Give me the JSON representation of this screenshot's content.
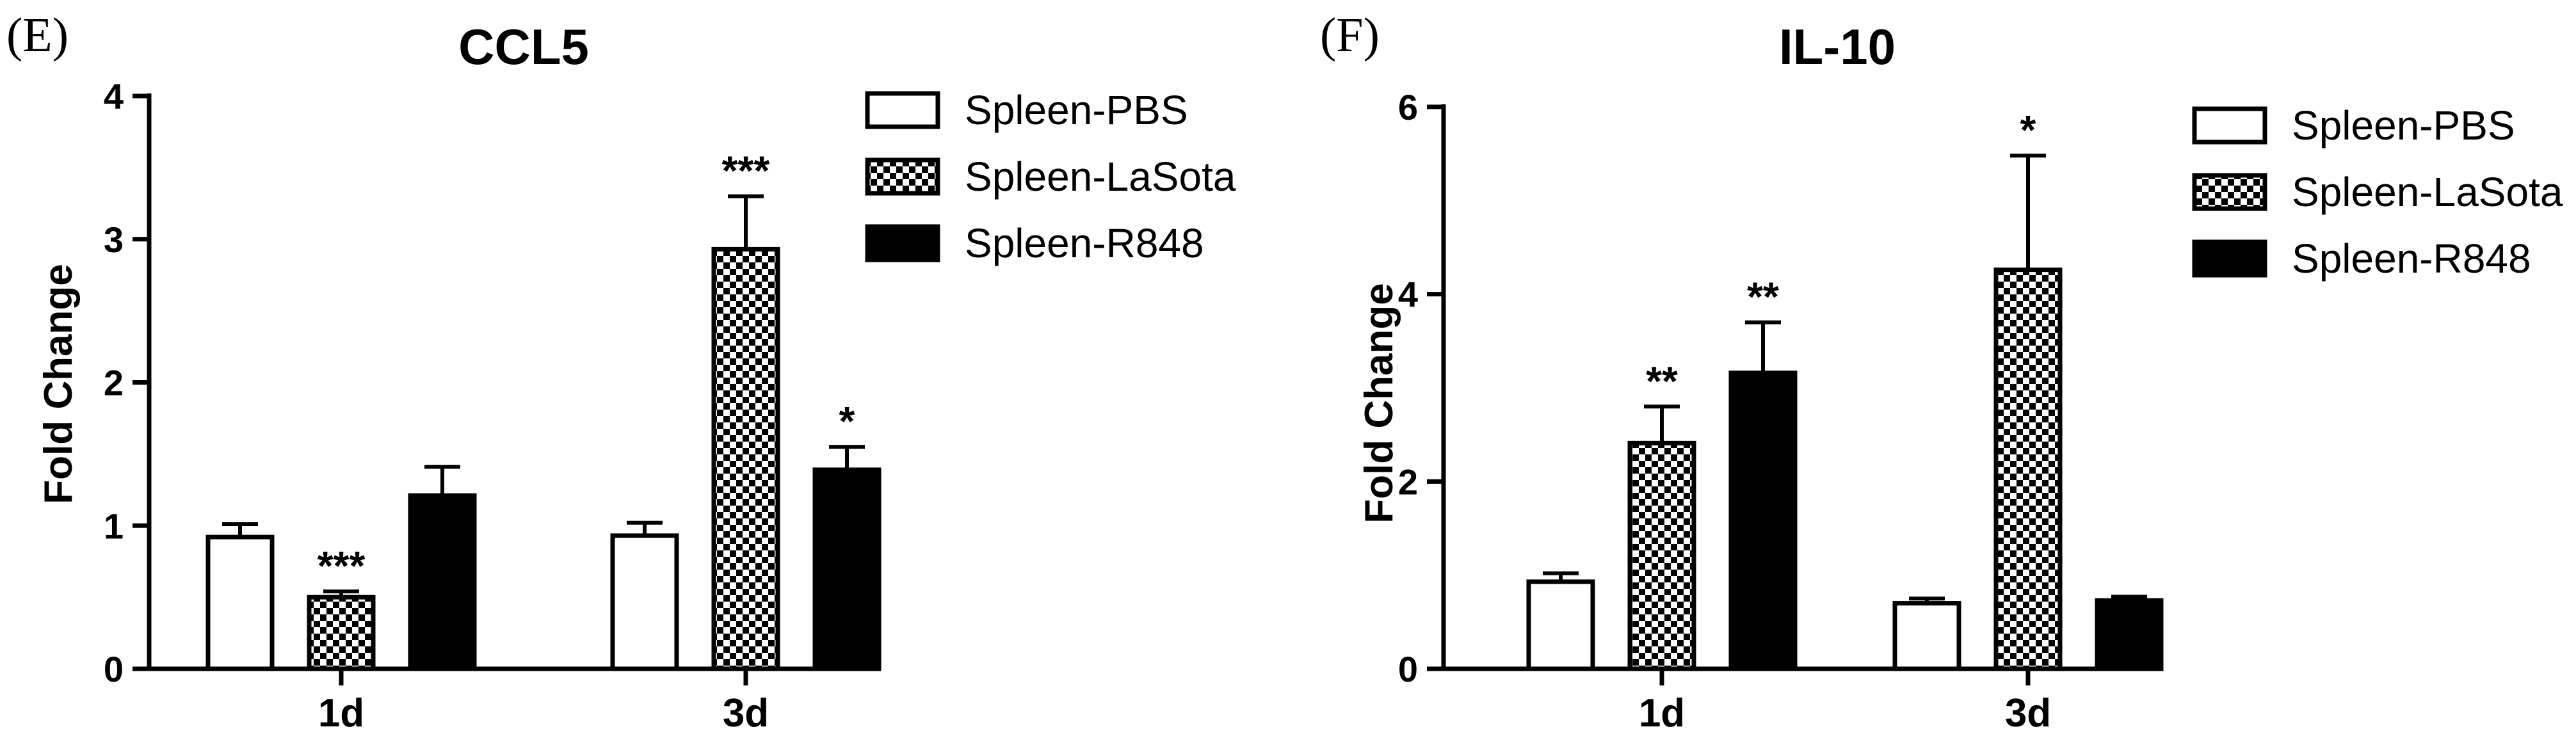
{
  "colors": {
    "ink": "#000000",
    "paper": "#ffffff"
  },
  "chart_data": [
    {
      "type": "bar",
      "panel_label": "(E)",
      "title": "CCL5",
      "xlabel": "",
      "ylabel": "Fold Change",
      "ylim": [
        0,
        4
      ],
      "yticks": [
        0,
        1,
        2,
        3,
        4
      ],
      "grid": false,
      "legend_position": "top-right",
      "categories": [
        "1d",
        "3d"
      ],
      "series": [
        {
          "name": "Spleen-PBS",
          "fill": "white",
          "values": [
            0.92,
            0.93
          ],
          "errors": [
            0.09,
            0.09
          ],
          "significance": [
            "",
            ""
          ]
        },
        {
          "name": "Spleen-LaSota",
          "fill": "checker",
          "values": [
            0.5,
            2.93
          ],
          "errors": [
            0.04,
            0.37
          ],
          "significance": [
            "***",
            "***"
          ]
        },
        {
          "name": "Spleen-R848",
          "fill": "black",
          "values": [
            1.21,
            1.39
          ],
          "errors": [
            0.2,
            0.16
          ],
          "significance": [
            "",
            "*"
          ]
        }
      ]
    },
    {
      "type": "bar",
      "panel_label": "(F)",
      "title": "IL-10",
      "xlabel": "",
      "ylabel": "Fold Change",
      "ylim": [
        0,
        6
      ],
      "yticks": [
        0,
        2,
        4,
        6
      ],
      "grid": false,
      "legend_position": "top-right",
      "categories": [
        "1d",
        "3d"
      ],
      "series": [
        {
          "name": "Spleen-PBS",
          "fill": "white",
          "values": [
            0.93,
            0.7
          ],
          "errors": [
            0.09,
            0.05
          ],
          "significance": [
            "",
            ""
          ]
        },
        {
          "name": "Spleen-LaSota",
          "fill": "checker",
          "values": [
            2.41,
            4.26
          ],
          "errors": [
            0.39,
            1.22
          ],
          "significance": [
            "**",
            "*"
          ]
        },
        {
          "name": "Spleen-R848",
          "fill": "black",
          "values": [
            3.16,
            0.73
          ],
          "errors": [
            0.54,
            0.04
          ],
          "significance": [
            "**",
            ""
          ]
        }
      ]
    }
  ]
}
